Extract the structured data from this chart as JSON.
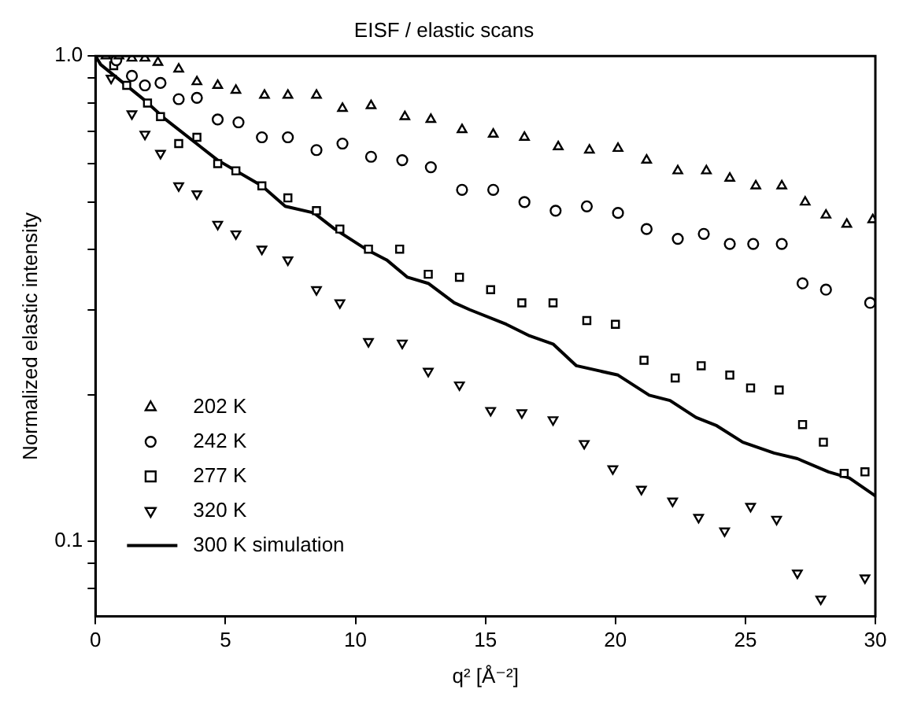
{
  "chart_data": {
    "type": "scatter",
    "title": "EISF / elastic scans",
    "xlabel": "q² [Å⁻²]",
    "ylabel": "Normalized elastic intensity",
    "xlim": [
      0,
      30
    ],
    "xticks": [
      0,
      5,
      10,
      15,
      20,
      25,
      30
    ],
    "ylim": [
      0.07,
      1.0
    ],
    "log": "y",
    "yticks": [
      {
        "value": 0.08,
        "label": null
      },
      {
        "value": 0.09,
        "label": null
      },
      0.1,
      {
        "value": 0.2,
        "label": null
      },
      {
        "value": 0.3,
        "label": null
      },
      {
        "value": 0.4,
        "label": null
      },
      {
        "value": 0.5,
        "label": null
      },
      {
        "value": 0.6,
        "label": null
      },
      {
        "value": 0.7,
        "label": null
      },
      {
        "value": 0.8,
        "label": null
      },
      {
        "value": 0.9,
        "label": null
      },
      {
        "value": 1.0,
        "label": "1.0"
      }
    ],
    "grid": false,
    "legend": "bottom left",
    "series": [
      {
        "name": "202 K",
        "type": "scatter",
        "marker": "triangle",
        "color": "#000000",
        "x": [
          0.4,
          0.9,
          1.4,
          1.9,
          2.4,
          3.2,
          3.9,
          4.7,
          5.4,
          6.5,
          7.4,
          8.5,
          9.5,
          10.6,
          11.9,
          12.9,
          14.1,
          15.3,
          16.5,
          17.8,
          19.0,
          20.1,
          21.2,
          22.4,
          23.5,
          24.4,
          25.4,
          26.4,
          27.3,
          28.1,
          28.9,
          29.9
        ],
        "values": [
          1.0,
          1.0,
          0.99,
          0.99,
          0.97,
          0.94,
          0.885,
          0.87,
          0.85,
          0.83,
          0.83,
          0.83,
          0.78,
          0.79,
          0.75,
          0.74,
          0.705,
          0.69,
          0.68,
          0.65,
          0.64,
          0.645,
          0.61,
          0.58,
          0.58,
          0.56,
          0.54,
          0.54,
          0.5,
          0.47,
          0.45,
          0.46
        ]
      },
      {
        "name": "242 K",
        "type": "scatter",
        "marker": "circle",
        "color": "#000000",
        "x": [
          0.8,
          1.4,
          1.9,
          2.5,
          3.2,
          3.9,
          4.7,
          5.5,
          6.4,
          7.4,
          8.5,
          9.5,
          10.6,
          11.8,
          12.9,
          14.1,
          15.3,
          16.5,
          17.7,
          18.9,
          20.1,
          21.2,
          22.4,
          23.4,
          24.4,
          25.3,
          26.4,
          27.2,
          28.1,
          29.8
        ],
        "values": [
          0.98,
          0.91,
          0.87,
          0.88,
          0.815,
          0.82,
          0.74,
          0.73,
          0.68,
          0.68,
          0.64,
          0.66,
          0.62,
          0.61,
          0.59,
          0.53,
          0.53,
          0.5,
          0.48,
          0.49,
          0.475,
          0.44,
          0.42,
          0.43,
          0.41,
          0.41,
          0.41,
          0.34,
          0.33,
          0.31
        ]
      },
      {
        "name": "277 K",
        "type": "scatter",
        "marker": "square",
        "color": "#000000",
        "x": [
          0.7,
          1.2,
          2.0,
          2.5,
          3.2,
          3.9,
          4.7,
          5.4,
          6.4,
          7.4,
          8.5,
          9.4,
          10.5,
          11.7,
          12.8,
          14.0,
          15.2,
          16.4,
          17.6,
          18.9,
          20.0,
          21.1,
          22.3,
          23.3,
          24.4,
          25.2,
          26.3,
          27.2,
          28.0,
          28.8,
          29.6
        ],
        "values": [
          0.955,
          0.87,
          0.8,
          0.75,
          0.66,
          0.68,
          0.6,
          0.58,
          0.54,
          0.51,
          0.48,
          0.44,
          0.4,
          0.4,
          0.355,
          0.35,
          0.33,
          0.31,
          0.31,
          0.285,
          0.28,
          0.236,
          0.217,
          0.23,
          0.22,
          0.207,
          0.205,
          0.174,
          0.16,
          0.138,
          0.139
        ]
      },
      {
        "name": "320 K",
        "type": "scatter",
        "marker": "triangle_down",
        "color": "#000000",
        "x": [
          0.6,
          1.4,
          1.9,
          2.5,
          3.2,
          3.9,
          4.7,
          5.4,
          6.4,
          7.4,
          8.5,
          9.4,
          10.5,
          11.8,
          12.8,
          14.0,
          15.2,
          16.4,
          17.6,
          18.8,
          19.9,
          21.0,
          22.2,
          23.2,
          24.2,
          25.2,
          26.2,
          27.0,
          27.9,
          29.6
        ],
        "values": [
          0.9,
          0.76,
          0.69,
          0.63,
          0.54,
          0.52,
          0.45,
          0.43,
          0.4,
          0.38,
          0.33,
          0.31,
          0.258,
          0.256,
          0.224,
          0.21,
          0.186,
          0.184,
          0.178,
          0.159,
          0.141,
          0.128,
          0.121,
          0.112,
          0.105,
          0.118,
          0.111,
          0.086,
          0.076,
          0.084
        ]
      },
      {
        "name": "300 K simulation",
        "type": "line",
        "marker": "none",
        "line_style": "solid",
        "color": "#000000",
        "x": [
          0,
          0.2,
          1.9,
          2.7,
          4.7,
          6.4,
          7.3,
          8.4,
          9.2,
          10.4,
          11.2,
          12.0,
          12.8,
          13.8,
          14.4,
          15.8,
          16.7,
          17.6,
          18.5,
          20.1,
          21.3,
          22.1,
          23.1,
          23.9,
          24.9,
          26.1,
          27.0,
          28.2,
          29.0,
          30.0
        ],
        "values": [
          1.0,
          0.96,
          0.81,
          0.74,
          0.61,
          0.54,
          0.49,
          0.475,
          0.44,
          0.4,
          0.38,
          0.35,
          0.34,
          0.31,
          0.3,
          0.28,
          0.265,
          0.255,
          0.23,
          0.22,
          0.2,
          0.195,
          0.18,
          0.173,
          0.16,
          0.152,
          0.148,
          0.139,
          0.135,
          0.124
        ]
      }
    ]
  }
}
